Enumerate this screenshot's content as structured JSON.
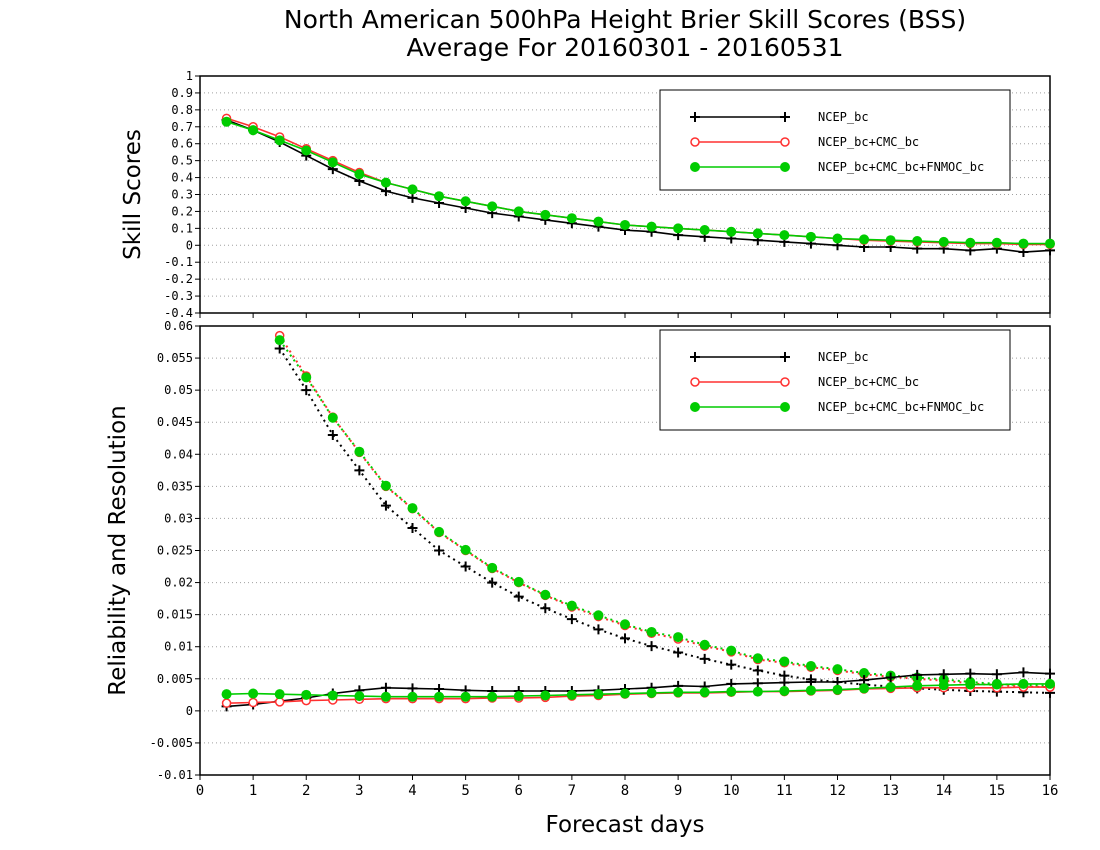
{
  "title": {
    "line1": "North American 500hPa Height Brier Skill Scores (BSS)",
    "line2": "Average For 20160301 - 20160531"
  },
  "chart_data": [
    {
      "type": "line",
      "ylabel": "Skill Scores",
      "ylim": [
        -0.4,
        1.0
      ],
      "xlim": [
        0,
        16
      ],
      "y_ticks": [
        -0.4,
        -0.3,
        -0.2,
        -0.1,
        0,
        0.1,
        0.2,
        0.3,
        0.4,
        0.5,
        0.6,
        0.7,
        0.8,
        0.9,
        1
      ],
      "grid": true,
      "legend_position": "top-right",
      "x": [
        0.5,
        1.0,
        1.5,
        2.0,
        2.5,
        3.0,
        3.5,
        4.0,
        4.5,
        5.0,
        5.5,
        6.0,
        6.5,
        7.0,
        7.5,
        8.0,
        8.5,
        9.0,
        9.5,
        10.0,
        10.5,
        11.0,
        11.5,
        12.0,
        12.5,
        13.0,
        13.5,
        14.0,
        14.5,
        15.0,
        15.5,
        16.0
      ],
      "series": [
        {
          "name": "NCEP_bc",
          "color": "#000000",
          "marker": "plus",
          "values": [
            0.74,
            0.68,
            0.61,
            0.53,
            0.45,
            0.38,
            0.32,
            0.28,
            0.25,
            0.22,
            0.19,
            0.17,
            0.15,
            0.13,
            0.11,
            0.09,
            0.08,
            0.06,
            0.05,
            0.04,
            0.03,
            0.02,
            0.01,
            0.0,
            -0.01,
            -0.01,
            -0.02,
            -0.02,
            -0.03,
            -0.02,
            -0.04,
            -0.03
          ]
        },
        {
          "name": "NCEP_bc+CMC_bc",
          "color": "#ff3030",
          "marker": "open-circle",
          "values": [
            0.75,
            0.7,
            0.64,
            0.57,
            0.5,
            0.43,
            0.37,
            0.33,
            0.29,
            0.26,
            0.23,
            0.2,
            0.18,
            0.16,
            0.14,
            0.12,
            0.11,
            0.1,
            0.09,
            0.08,
            0.07,
            0.06,
            0.05,
            0.04,
            0.03,
            0.025,
            0.02,
            0.015,
            0.01,
            0.01,
            0.005,
            0.005
          ]
        },
        {
          "name": "NCEP_bc+CMC_bc+FNMOC_bc",
          "color": "#00cc00",
          "marker": "filled-circle",
          "values": [
            0.73,
            0.68,
            0.62,
            0.56,
            0.49,
            0.42,
            0.37,
            0.33,
            0.29,
            0.26,
            0.23,
            0.2,
            0.18,
            0.16,
            0.14,
            0.12,
            0.11,
            0.1,
            0.09,
            0.08,
            0.07,
            0.06,
            0.05,
            0.04,
            0.035,
            0.03,
            0.025,
            0.02,
            0.015,
            0.015,
            0.01,
            0.01
          ]
        }
      ]
    },
    {
      "type": "line",
      "ylabel": "Reliability and Resolution",
      "xlabel": "Forecast days",
      "ylim": [
        -0.01,
        0.06
      ],
      "xlim": [
        0,
        16
      ],
      "x_ticks": [
        0,
        1,
        2,
        3,
        4,
        5,
        6,
        7,
        8,
        9,
        10,
        11,
        12,
        13,
        14,
        15,
        16
      ],
      "y_ticks": [
        -0.01,
        -0.005,
        0,
        0.005,
        0.01,
        0.015,
        0.02,
        0.025,
        0.03,
        0.035,
        0.04,
        0.045,
        0.05,
        0.055,
        0.06
      ],
      "grid": true,
      "legend_position": "top-right",
      "x": [
        0.5,
        1.0,
        1.5,
        2.0,
        2.5,
        3.0,
        3.5,
        4.0,
        4.5,
        5.0,
        5.5,
        6.0,
        6.5,
        7.0,
        7.5,
        8.0,
        8.5,
        9.0,
        9.5,
        10.0,
        10.5,
        11.0,
        11.5,
        12.0,
        12.5,
        13.0,
        13.5,
        14.0,
        14.5,
        15.0,
        15.5,
        16.0
      ],
      "series": [
        {
          "name": "NCEP_bc",
          "role": "resolution",
          "color": "#000000",
          "marker": "plus",
          "linestyle": "dotted",
          "values": [
            null,
            null,
            0.0565,
            0.05,
            0.043,
            0.0375,
            0.032,
            0.0285,
            0.025,
            0.0225,
            0.02,
            0.0178,
            0.016,
            0.0143,
            0.0127,
            0.0113,
            0.0101,
            0.0091,
            0.0081,
            0.0072,
            0.0063,
            0.0055,
            0.0049,
            0.0045,
            0.0041,
            0.0038,
            0.0035,
            0.0033,
            0.0031,
            0.003,
            0.0029,
            0.0028
          ]
        },
        {
          "name": "NCEP_bc+CMC_bc",
          "role": "resolution",
          "color": "#ff3030",
          "marker": "open-circle",
          "linestyle": "dotted",
          "values": [
            null,
            null,
            0.0585,
            0.0522,
            0.0458,
            0.0403,
            0.035,
            0.0315,
            0.0278,
            0.025,
            0.0222,
            0.02,
            0.018,
            0.0162,
            0.0147,
            0.0133,
            0.0121,
            0.0112,
            0.0101,
            0.0092,
            0.008,
            0.0075,
            0.0068,
            0.0063,
            0.0057,
            0.0053,
            0.005,
            0.0047,
            0.0043,
            0.004,
            0.0038,
            0.0037
          ]
        },
        {
          "name": "NCEP_bc+CMC_bc+FNMOC_bc",
          "role": "resolution",
          "color": "#00cc00",
          "marker": "filled-circle",
          "linestyle": "dotted",
          "values": [
            null,
            null,
            0.0578,
            0.052,
            0.0457,
            0.0404,
            0.0351,
            0.0316,
            0.0279,
            0.0251,
            0.0223,
            0.0201,
            0.0181,
            0.0164,
            0.0149,
            0.0135,
            0.0123,
            0.0115,
            0.0103,
            0.0094,
            0.0082,
            0.0077,
            0.007,
            0.0065,
            0.0059,
            0.0055,
            0.0052,
            0.0049,
            0.0045,
            0.0042,
            0.004,
            0.0039
          ]
        },
        {
          "name": "NCEP_bc",
          "role": "reliability",
          "color": "#000000",
          "marker": "plus",
          "linestyle": "solid",
          "values": [
            0.0007,
            0.001,
            0.0015,
            0.002,
            0.0027,
            0.0032,
            0.0036,
            0.0035,
            0.0034,
            0.0032,
            0.0031,
            0.0031,
            0.0031,
            0.0031,
            0.0032,
            0.0034,
            0.0036,
            0.0039,
            0.0038,
            0.0042,
            0.0043,
            0.0044,
            0.0045,
            0.0045,
            0.0048,
            0.0052,
            0.0056,
            0.0057,
            0.0058,
            0.0057,
            0.006,
            0.0058
          ]
        },
        {
          "name": "NCEP_bc+CMC_bc",
          "role": "reliability",
          "color": "#ff3030",
          "marker": "open-circle",
          "linestyle": "solid",
          "values": [
            0.0012,
            0.0013,
            0.0014,
            0.0016,
            0.0017,
            0.0018,
            0.0019,
            0.0019,
            0.0019,
            0.0019,
            0.002,
            0.002,
            0.0021,
            0.0023,
            0.0024,
            0.0026,
            0.0027,
            0.0028,
            0.0028,
            0.0029,
            0.003,
            0.003,
            0.0031,
            0.0032,
            0.0034,
            0.0035,
            0.0036,
            0.0036,
            0.0036,
            0.0036,
            0.0037,
            0.0037
          ]
        },
        {
          "name": "NCEP_bc+CMC_bc+FNMOC_bc",
          "role": "reliability",
          "color": "#00cc00",
          "marker": "filled-circle",
          "linestyle": "solid",
          "values": [
            0.0026,
            0.0027,
            0.0026,
            0.0025,
            0.0024,
            0.0023,
            0.0022,
            0.0022,
            0.0022,
            0.0022,
            0.0022,
            0.0023,
            0.0024,
            0.0025,
            0.0026,
            0.0027,
            0.0028,
            0.0029,
            0.0029,
            0.003,
            0.003,
            0.0031,
            0.0032,
            0.0033,
            0.0035,
            0.0037,
            0.0039,
            0.004,
            0.0041,
            0.0041,
            0.0042,
            0.0042
          ]
        }
      ]
    }
  ]
}
